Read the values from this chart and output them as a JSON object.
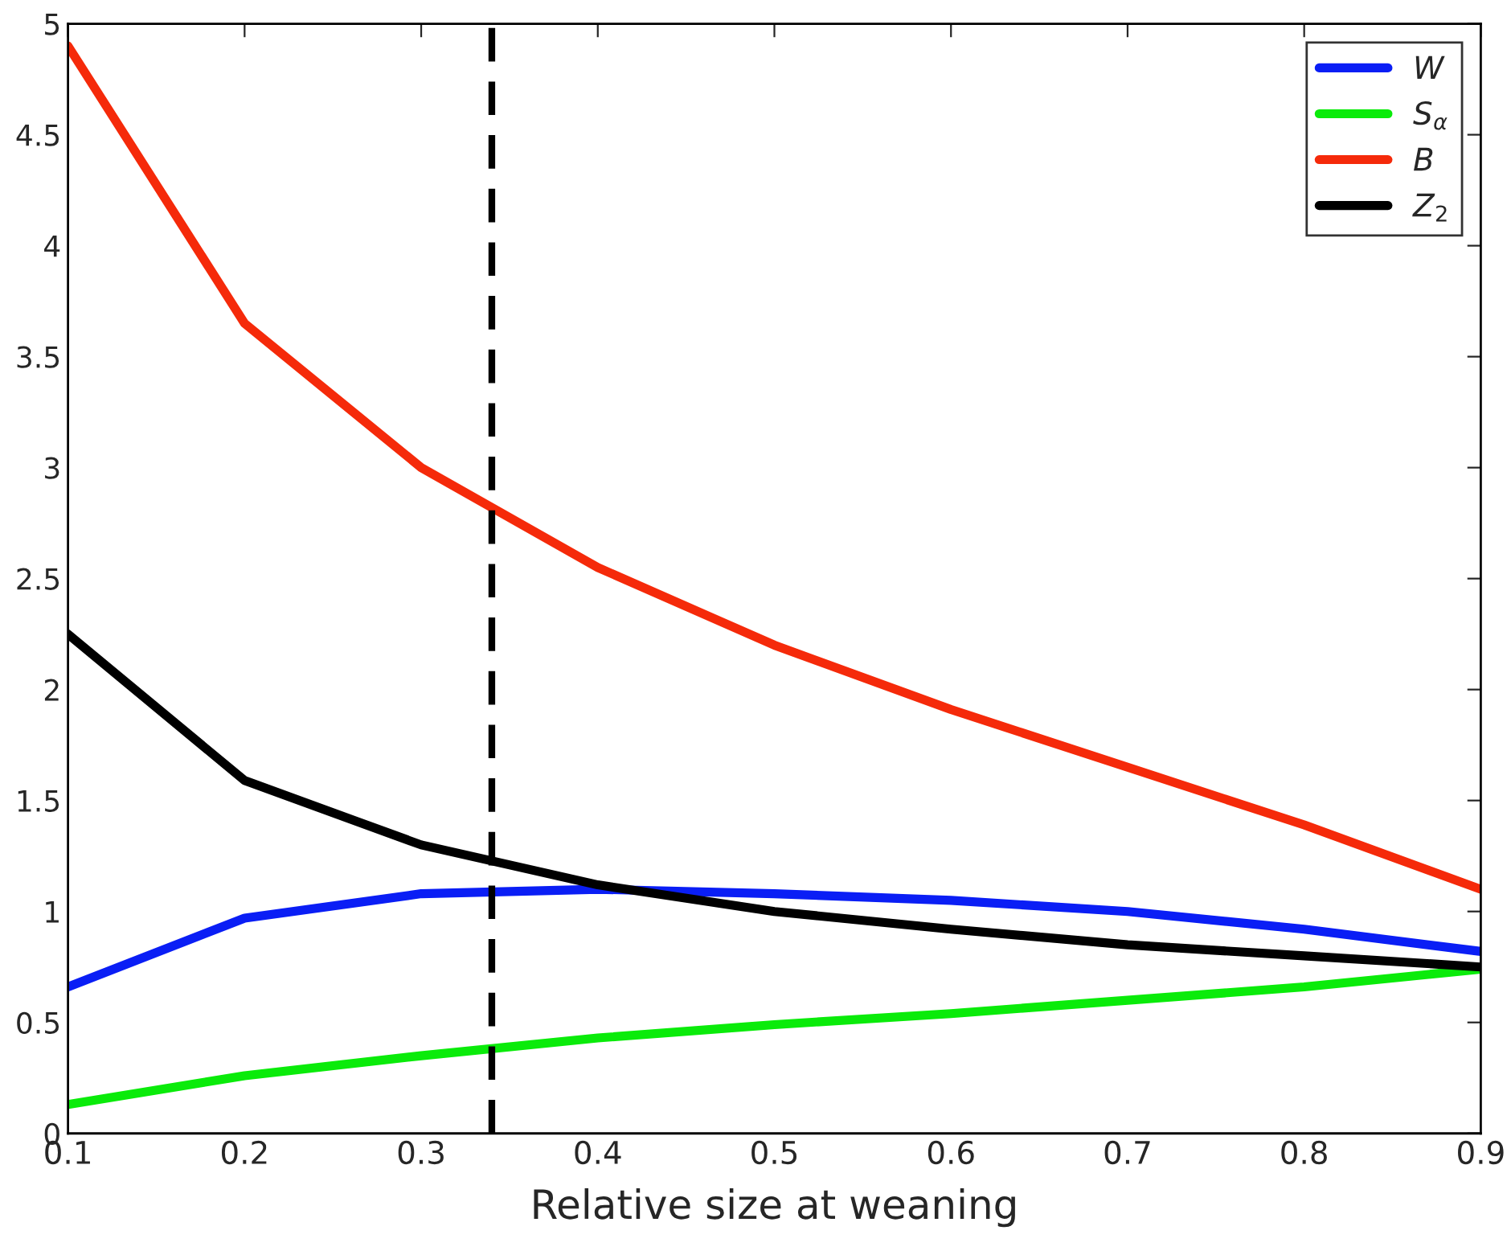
{
  "chart_data": {
    "type": "line",
    "xlabel": "Relative size at weaning",
    "x": [
      0.1,
      0.2,
      0.3,
      0.4,
      0.5,
      0.6,
      0.7,
      0.8,
      0.9
    ],
    "series": [
      {
        "name": "W",
        "color": "#0a1ef5",
        "values": [
          0.66,
          0.97,
          1.08,
          1.1,
          1.08,
          1.05,
          1.0,
          0.92,
          0.82
        ]
      },
      {
        "name": "S$_{α}$",
        "color": "#0aeb0a",
        "values": [
          0.13,
          0.26,
          0.35,
          0.43,
          0.49,
          0.54,
          0.6,
          0.66,
          0.74
        ]
      },
      {
        "name": "B",
        "color": "#f52a0a",
        "values": [
          4.9,
          3.65,
          3.0,
          2.55,
          2.2,
          1.91,
          1.65,
          1.39,
          1.1
        ]
      },
      {
        "name": "Z$_{2}$",
        "color": "#000000",
        "values": [
          2.25,
          1.59,
          1.3,
          1.12,
          1.0,
          0.92,
          0.85,
          0.8,
          0.75
        ]
      }
    ],
    "ref_lines": [
      {
        "axis": "x",
        "value": 0.34,
        "color": "#000000",
        "line_style": "dashed"
      }
    ],
    "xlim": [
      0.1,
      0.9
    ],
    "ylim": [
      0,
      5
    ],
    "xticks": [
      0.1,
      0.2,
      0.3,
      0.4,
      0.5,
      0.6,
      0.7,
      0.8,
      0.9
    ],
    "yticks": [
      0,
      0.5,
      1,
      1.5,
      2,
      2.5,
      3,
      3.5,
      4,
      4.5,
      5
    ],
    "grid": false,
    "legend": "top right",
    "line_style": "solid",
    "marker": "none"
  }
}
